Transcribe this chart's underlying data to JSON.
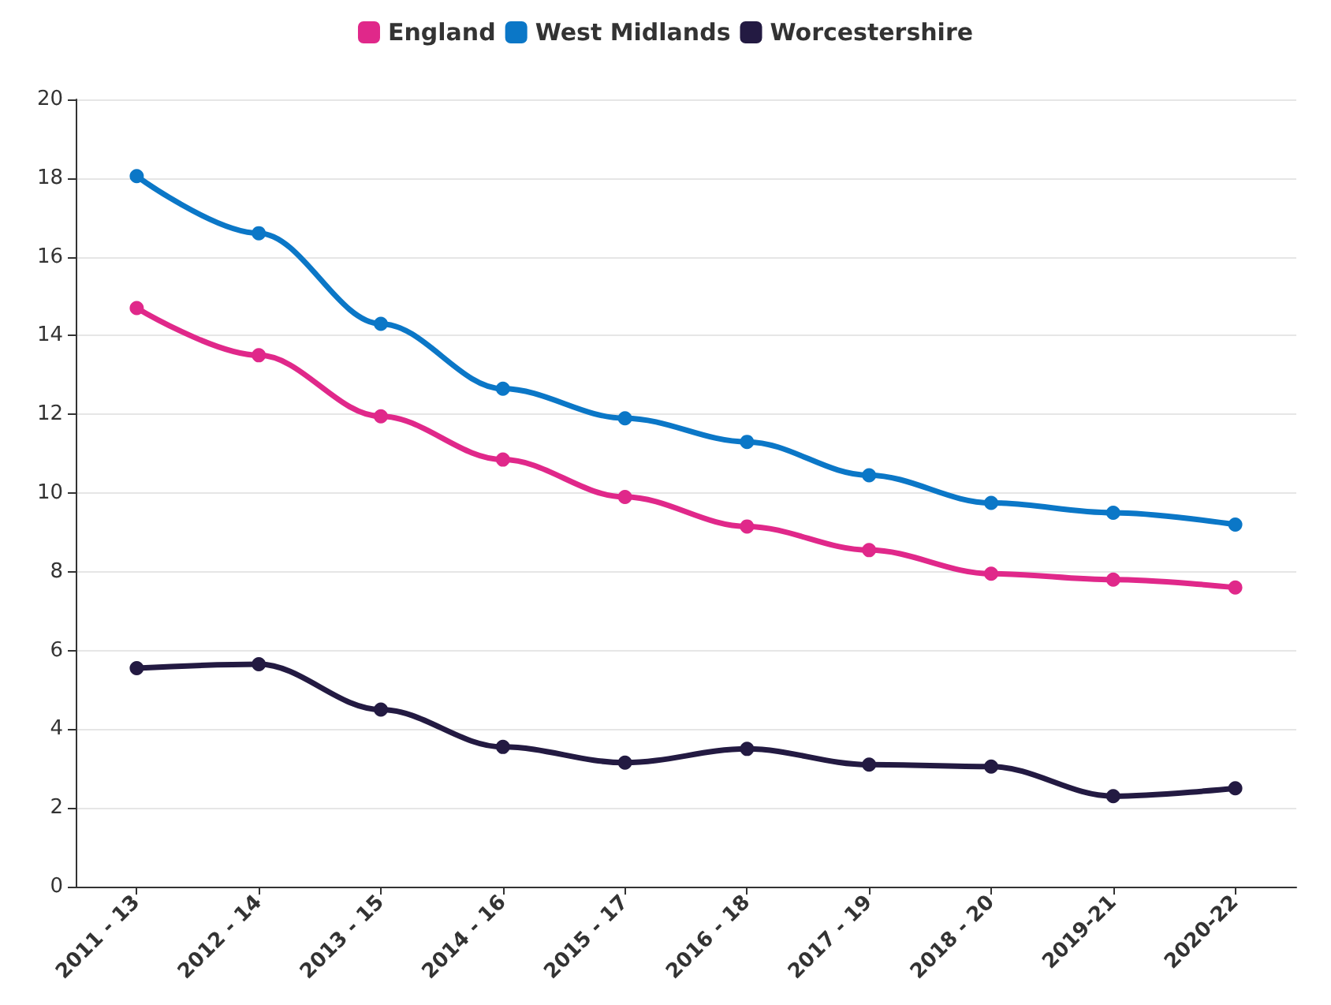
{
  "chart_data": {
    "type": "line",
    "categories": [
      "2011 - 13",
      "2012 - 14",
      "2013 - 15",
      "2014 - 16",
      "2015 - 17",
      "2016 - 18",
      "2017 - 19",
      "2018 - 20",
      "2019-21",
      "2020-22"
    ],
    "series": [
      {
        "name": "England",
        "color": "#e0288a",
        "values": [
          14.7,
          13.5,
          11.95,
          10.85,
          9.9,
          9.15,
          8.55,
          7.95,
          7.8,
          7.6
        ]
      },
      {
        "name": "West Midlands",
        "color": "#0b77c7",
        "values": [
          18.05,
          16.6,
          14.3,
          12.65,
          11.9,
          11.3,
          10.45,
          9.75,
          9.5,
          9.2
        ]
      },
      {
        "name": "Worcestershire",
        "color": "#231a42",
        "values": [
          5.55,
          5.65,
          4.5,
          3.55,
          3.15,
          3.5,
          3.1,
          3.05,
          2.3,
          2.5
        ]
      }
    ],
    "ylim": [
      0,
      20
    ],
    "yticks": [
      0,
      2,
      4,
      6,
      8,
      10,
      12,
      14,
      16,
      18,
      20
    ],
    "grid": "y",
    "legend": "top",
    "marker": "circle",
    "line_style": "solid"
  }
}
